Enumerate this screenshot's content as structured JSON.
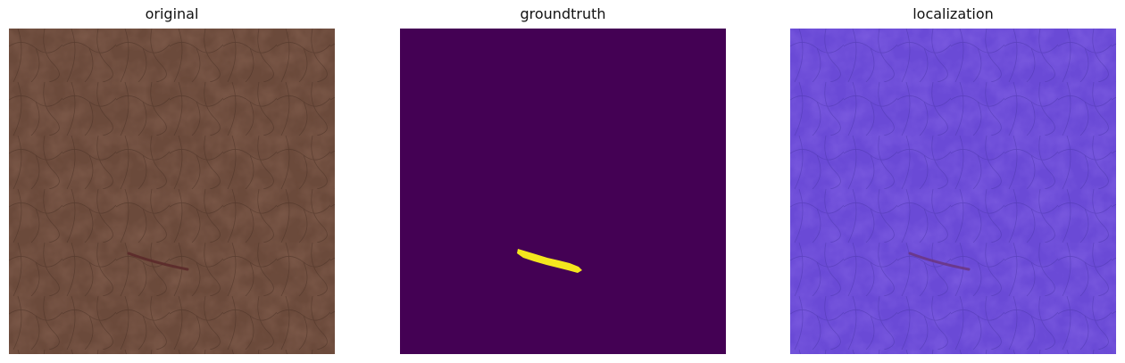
{
  "panels": [
    {
      "title": "original",
      "texture_base": "#6b4a3b",
      "texture_light": "#8a6554",
      "texture_line": "#4a3125",
      "defect": "#5b2a2a"
    },
    {
      "title": "groundtruth",
      "background": "#440154",
      "mask": "#f4e61e"
    },
    {
      "title": "localization",
      "texture_base": "#6a4ad6",
      "texture_light": "#8a6ae8",
      "texture_line": "#4a35a8",
      "defect": "#6a3580"
    }
  ]
}
